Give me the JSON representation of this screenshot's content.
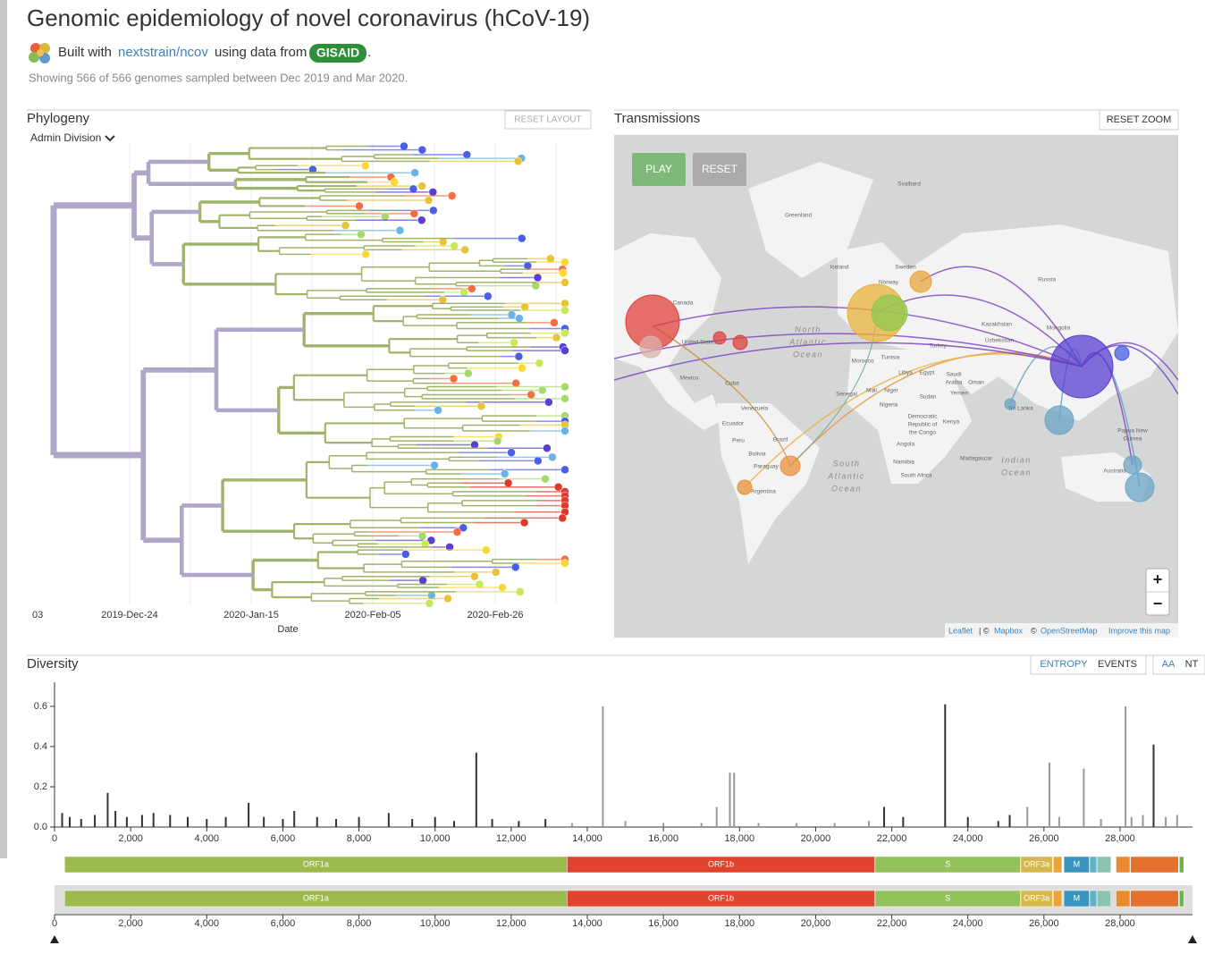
{
  "header": {
    "title": "Genomic epidemiology of novel coronavirus (hCoV-19)",
    "built_with": "Built with",
    "link": "nextstrain/ncov",
    "using": "using data from",
    "gisaid": "GISAID",
    "period": ".",
    "summary": "Showing 566 of 566 genomes sampled between Dec 2019 and Mar 2020."
  },
  "phylogeny": {
    "title": "Phylogeny",
    "reset_layout": "RESET LAYOUT",
    "color_by": "Admin Division",
    "xticks": [
      "03",
      "2019-Dec-24",
      "2020-Jan-15",
      "2020-Feb-05",
      "2020-Feb-26"
    ],
    "xlabel": "Date"
  },
  "transmissions": {
    "title": "Transmissions",
    "reset_zoom": "RESET ZOOM",
    "play": "PLAY",
    "reset": "RESET",
    "zoom_in": "+",
    "zoom_out": "−",
    "attribution": [
      "Leaflet",
      "| ©",
      "Mapbox",
      "©",
      "OpenStreetMap",
      "Improve this map"
    ],
    "labels": [
      "Svalbard",
      "Greenland",
      "Iceland",
      "Sweden",
      "Norway",
      "Russia",
      "Canada",
      "United States",
      "Mexico",
      "Cuba",
      "North",
      "Atlantic",
      "Ocean",
      "Venezuela",
      "Ecuador",
      "Peru",
      "Brazil",
      "Bolivia",
      "Paraguay",
      "Argentina",
      "Morocco",
      "Tunisia",
      "Libya",
      "Egypt",
      "Mali",
      "Niger",
      "Nigeria",
      "Senegal",
      "Sudan",
      "Democratic",
      "Republic of",
      "the Congo",
      "Angola",
      "Namibia",
      "South Africa",
      "Kenya",
      "Madagascar",
      "Turkey",
      "Kazakhstan",
      "Uzbekistan",
      "Saudi",
      "Arabia",
      "Yemen",
      "Oman",
      "Mongolia",
      "Sri Lanka",
      "Papua New",
      "Guinea",
      "Indian",
      "Ocean",
      "South",
      "Atlantic",
      "Ocean",
      "Australia"
    ]
  },
  "diversity": {
    "title": "Diversity",
    "toggles": [
      "ENTROPY",
      "EVENTS",
      "AA",
      "NT"
    ],
    "chart": {
      "type": "bar",
      "xlim": [
        0,
        29903
      ],
      "ylim": [
        0,
        0.72
      ],
      "xticks": [
        0,
        {
          "value": 2000,
          "label": "2,000"
        },
        {
          "value": 4000,
          "label": "4,000"
        },
        {
          "value": 6000,
          "label": "6,000"
        },
        {
          "value": 8000,
          "label": "8,000"
        },
        {
          "value": 10000,
          "label": "10,000"
        },
        {
          "value": 12000,
          "label": "12,000"
        },
        {
          "value": 14000,
          "label": "14,000"
        },
        {
          "value": 16000,
          "label": "16,000"
        },
        {
          "value": 18000,
          "label": "18,000"
        },
        {
          "value": 20000,
          "label": "20,000"
        },
        {
          "value": 22000,
          "label": "22,000"
        },
        {
          "value": 24000,
          "label": "24,000"
        },
        {
          "value": 26000,
          "label": "26,000"
        },
        {
          "value": 28000,
          "label": "28,000"
        }
      ],
      "yticks": [
        {
          "value": 0,
          "label": "0.0"
        },
        0.2,
        0.4,
        0.6
      ],
      "positions": [
        200,
        400,
        700,
        1059,
        1397,
        1600,
        1900,
        2300,
        2600,
        3037,
        3500,
        4000,
        4500,
        5100,
        5500,
        6000,
        6300,
        6900,
        7400,
        8000,
        8782,
        9400,
        10000,
        10500,
        11083,
        11500,
        12200,
        12900,
        13600,
        14408,
        15000,
        16000,
        17000,
        17400,
        17747,
        17858,
        18500,
        19500,
        20500,
        21400,
        21800,
        22300,
        23403,
        24000,
        24800,
        25100,
        25563,
        26144,
        26400,
        27046,
        27500,
        28144,
        28300,
        28600,
        28881,
        29200,
        29500
      ],
      "values": [
        0.07,
        0.05,
        0.04,
        0.06,
        0.17,
        0.08,
        0.05,
        0.06,
        0.07,
        0.06,
        0.05,
        0.04,
        0.05,
        0.12,
        0.05,
        0.04,
        0.08,
        0.05,
        0.04,
        0.05,
        0.07,
        0.04,
        0.05,
        0.03,
        0.37,
        0.04,
        0.03,
        0.04,
        0.02,
        0.6,
        0.03,
        0.02,
        0.02,
        0.1,
        0.27,
        0.27,
        0.02,
        0.02,
        0.02,
        0.03,
        0.1,
        0.05,
        0.61,
        0.05,
        0.03,
        0.06,
        0.1,
        0.32,
        0.05,
        0.29,
        0.04,
        0.6,
        0.05,
        0.06,
        0.41,
        0.05,
        0.06
      ],
      "colors": [
        "#333",
        "#333",
        "#333",
        "#333",
        "#333",
        "#333",
        "#333",
        "#333",
        "#333",
        "#333",
        "#333",
        "#333",
        "#333",
        "#333",
        "#333",
        "#333",
        "#333",
        "#333",
        "#333",
        "#333",
        "#333",
        "#333",
        "#333",
        "#333",
        "#333",
        "#333",
        "#333",
        "#333",
        "#999",
        "#999",
        "#999",
        "#999",
        "#999",
        "#999",
        "#999",
        "#999",
        "#999",
        "#999",
        "#999",
        "#999",
        "#333",
        "#333",
        "#333",
        "#333",
        "#333",
        "#333",
        "#999",
        "#999",
        "#999",
        "#999",
        "#999",
        "#999",
        "#999",
        "#999",
        "#333",
        "#999",
        "#999"
      ],
      "genes": [
        {
          "name": "ORF1a",
          "start": 266,
          "end": 13468,
          "color": "#9cbb4c"
        },
        {
          "name": "ORF1b",
          "start": 13468,
          "end": 21555,
          "color": "#e1432e"
        },
        {
          "name": "S",
          "start": 21563,
          "end": 25384,
          "color": "#93c15a"
        },
        {
          "name": "ORF3a",
          "start": 25393,
          "end": 26220,
          "color": "#d7b74b"
        },
        {
          "name": null,
          "start": 26245,
          "end": 26472,
          "color": "#e9a53a"
        },
        {
          "name": "M",
          "start": 26523,
          "end": 27191,
          "color": "#3a94c0"
        },
        {
          "name": null,
          "start": 27202,
          "end": 27387,
          "color": "#5db3c7"
        },
        {
          "name": null,
          "start": 27394,
          "end": 27759,
          "color": "#8bc3b3"
        },
        {
          "name": null,
          "start": 27894,
          "end": 28259,
          "color": "#e98a2e"
        },
        {
          "name": null,
          "start": 28274,
          "end": 29533,
          "color": "#e6712c"
        },
        {
          "name": null,
          "start": 29558,
          "end": 29674,
          "color": "#6cb54a"
        }
      ]
    }
  }
}
